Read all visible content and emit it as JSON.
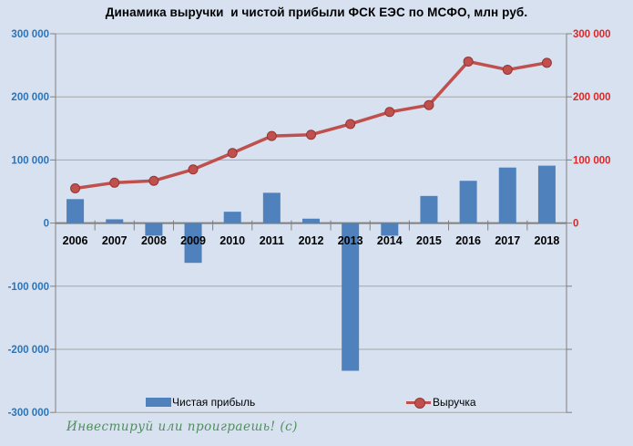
{
  "title": "Динамика выручки  и чистой прибыли ФСК ЕЭС по МСФО, млн руб.",
  "watermark": "Инвестируй или проиграешь! (с)",
  "axes": {
    "left_ticks": [
      {
        "label": "300 000",
        "value": 300000
      },
      {
        "label": "200 000",
        "value": 200000
      },
      {
        "label": "100 000",
        "value": 100000
      },
      {
        "label": "0",
        "value": 0
      },
      {
        "label": "-100 000",
        "value": -100000
      },
      {
        "label": "-200 000",
        "value": -200000
      },
      {
        "label": "-300 000",
        "value": -300000
      }
    ],
    "right_ticks": [
      {
        "label": "300 000",
        "value": 300000
      },
      {
        "label": "200 000",
        "value": 200000
      },
      {
        "label": "100 000",
        "value": 100000
      },
      {
        "label": "0",
        "value": 0
      }
    ]
  },
  "chart_data": {
    "type": "bar+line",
    "title": "Динамика выручки  и чистой прибыли ФСК ЕЭС по МСФО, млн руб.",
    "categories": [
      "2006",
      "2007",
      "2008",
      "2009",
      "2010",
      "2011",
      "2012",
      "2013",
      "2014",
      "2015",
      "2016",
      "2017",
      "2018"
    ],
    "series": [
      {
        "name": "Чистая прибыль",
        "type": "bar",
        "axis": "left",
        "values": [
          38000,
          6000,
          -20000,
          -63000,
          18000,
          48000,
          7000,
          -234000,
          -20000,
          43000,
          67000,
          88000,
          91000
        ]
      },
      {
        "name": "Выручка",
        "type": "line",
        "axis": "right",
        "values": [
          55000,
          64000,
          67000,
          85000,
          111000,
          138000,
          140000,
          157000,
          176000,
          187000,
          256000,
          243000,
          254000
        ]
      }
    ],
    "ylim": [
      -300000,
      300000
    ],
    "y_tick_step": 100000,
    "grid": true,
    "legend_position": "bottom-inside"
  },
  "colors": {
    "background": "#d7e1f0",
    "bar": "#4f81bd",
    "line": "#c0504d",
    "marker_edge": "#943634",
    "left_axis_labels": "#2e74b5",
    "right_axis_labels": "#d62a2a",
    "grid": "#a6a6a6",
    "axis": "#808080",
    "year_labels": "#000000",
    "watermark": "#4f8f5b"
  }
}
